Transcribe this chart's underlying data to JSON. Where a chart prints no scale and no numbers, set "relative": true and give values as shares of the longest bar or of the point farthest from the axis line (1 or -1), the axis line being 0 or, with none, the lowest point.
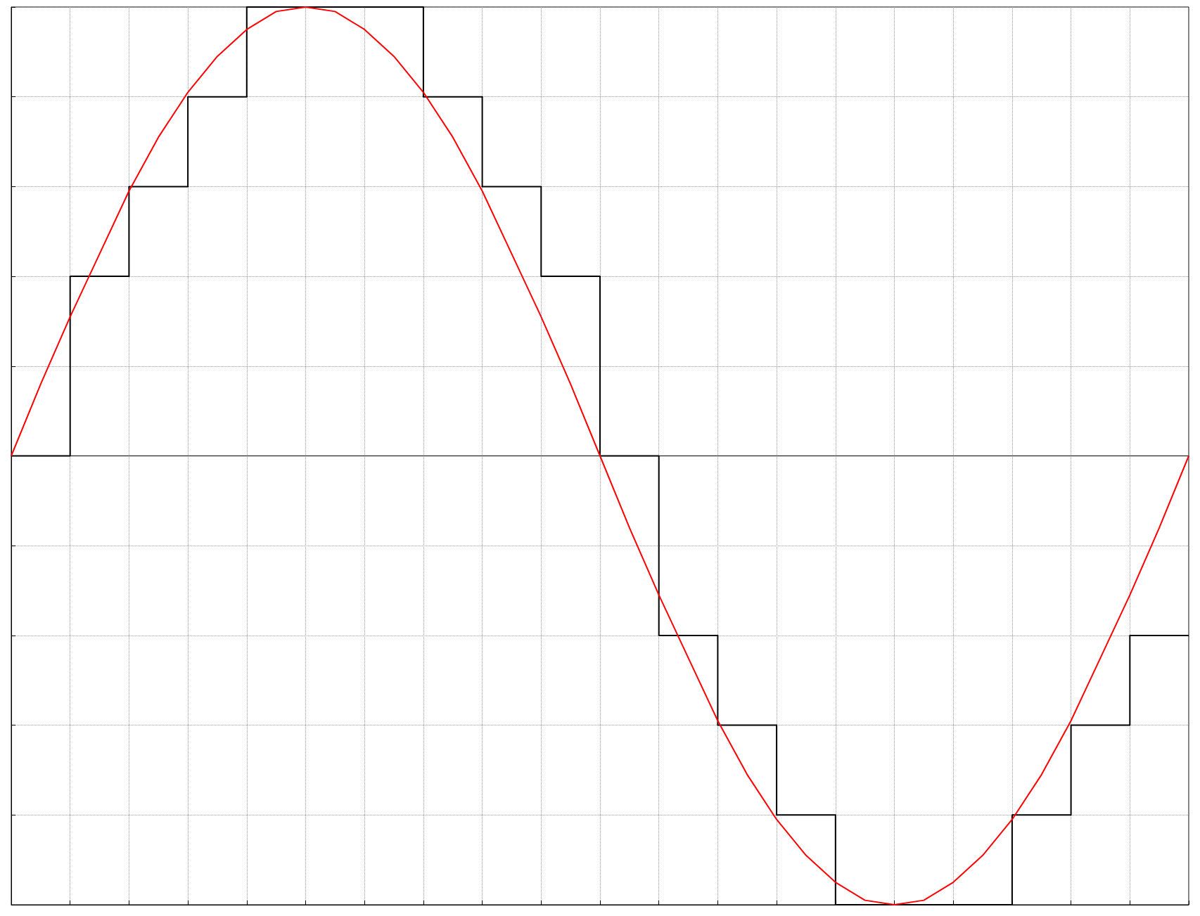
{
  "chart_data": {
    "type": "line",
    "relative": true,
    "grid": true,
    "categories": [
      null,
      null,
      null,
      null,
      null,
      null,
      null,
      null,
      null,
      null,
      null,
      null,
      null,
      null,
      null,
      null,
      null,
      null,
      null,
      null,
      null,
      null,
      null,
      null,
      null,
      null,
      null,
      null,
      null,
      null,
      null,
      null,
      null,
      null,
      null,
      null,
      null,
      null,
      null,
      null,
      null
    ],
    "series": [
      {
        "type": "step",
        "color": "#000000",
        "values": [
          0,
          0,
          0.4,
          0.4,
          0.6,
          0.6,
          0.8,
          0.8,
          1,
          1,
          1,
          1,
          1,
          1,
          0.8,
          0.8,
          0.6,
          0.6,
          0.4,
          0.4,
          0,
          0,
          -0.4,
          -0.4,
          -0.6,
          -0.6,
          -0.8,
          -0.8,
          -1,
          -1,
          -1,
          -1,
          -1,
          -1,
          -0.8,
          -0.8,
          -0.6,
          -0.6,
          -0.4,
          -0.4,
          -0.4
        ]
      },
      {
        "color": "#ff0000",
        "values": [
          0,
          0.16,
          0.31,
          0.45,
          0.59,
          0.71,
          0.81,
          0.89,
          0.95,
          0.99,
          1,
          0.99,
          0.95,
          0.89,
          0.81,
          0.71,
          0.59,
          0.45,
          0.31,
          0.16,
          0,
          -0.16,
          -0.31,
          -0.45,
          -0.59,
          -0.71,
          -0.81,
          -0.89,
          -0.95,
          -0.99,
          -1,
          -0.99,
          -0.95,
          -0.89,
          -0.81,
          -0.71,
          -0.59,
          -0.45,
          -0.31,
          -0.16,
          0
        ]
      }
    ]
  }
}
